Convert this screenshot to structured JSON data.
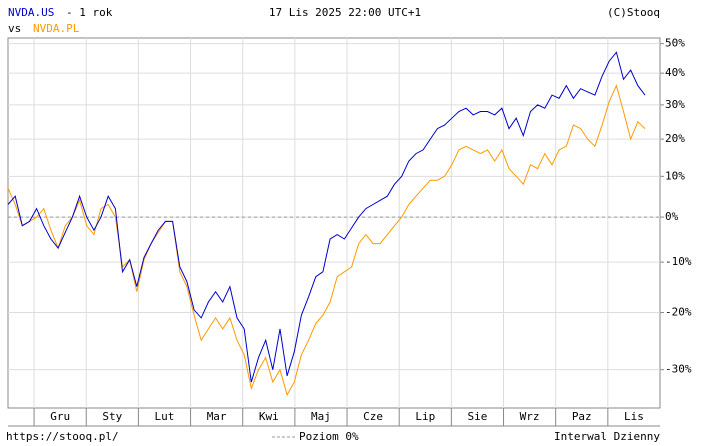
{
  "header": {
    "symbol": "NVDA.US",
    "period": "- 1 rok",
    "date": "17 Lis 2025 22:00 UTC+1",
    "copyright": "(C)Stooq",
    "vs": "vs"
  },
  "chart_data": {
    "type": "line",
    "log_scale": true,
    "grid": true,
    "x_labels": [
      "Gru",
      "Sty",
      "Lut",
      "Mar",
      "Kwi",
      "Maj",
      "Cze",
      "Lip",
      "Sie",
      "Wrz",
      "Paz",
      "Lis"
    ],
    "series": [
      {
        "name": "NVDA.US",
        "color": "#0000cc",
        "values": [
          3,
          5,
          -2,
          -1,
          2,
          -2,
          -5,
          -7,
          -3.5,
          0,
          5,
          0,
          -3,
          0,
          5,
          2,
          -12,
          -9.5,
          -15,
          -9,
          -6,
          -3,
          -1,
          -1,
          -11,
          -14,
          -19.5,
          -21,
          -18,
          -16,
          -18,
          -15,
          -21,
          -23,
          -32,
          -28,
          -25,
          -30,
          -23,
          -31,
          -27,
          -20.5,
          -17,
          -13,
          -12,
          -5,
          -4,
          -5,
          -2.5,
          0,
          2,
          3,
          4,
          5,
          8,
          10,
          14,
          16,
          17,
          20,
          23,
          24,
          26,
          28,
          29,
          27,
          28,
          28,
          27,
          29,
          23,
          26,
          21,
          28,
          30,
          29,
          33,
          32,
          36,
          32,
          35,
          34,
          33,
          39,
          44,
          47,
          38,
          41,
          36,
          33
        ]
      },
      {
        "name": "NVDA.PL",
        "color": "#ff9900",
        "values": [
          7,
          3,
          -2,
          -1,
          0,
          2,
          -3,
          -7,
          -2,
          0,
          4,
          -2,
          -4,
          2,
          3,
          0,
          -11,
          -9.5,
          -16,
          -9.5,
          -6,
          -3.5,
          -1,
          -1,
          -12,
          -15,
          -20.5,
          -25,
          -23,
          -21,
          -23,
          -21,
          -25,
          -27.5,
          -33,
          -30,
          -28,
          -32,
          -30,
          -34,
          -32,
          -27.5,
          -25,
          -22,
          -20.5,
          -18,
          -13,
          -12,
          -11,
          -6,
          -4,
          -6,
          -6,
          -4,
          -2,
          0,
          3,
          5,
          7,
          9,
          9,
          10,
          13,
          17,
          18,
          17,
          16,
          17,
          14,
          17,
          12,
          10,
          8,
          13,
          12,
          16,
          13,
          17,
          18,
          24,
          23,
          20,
          18,
          24,
          31,
          36,
          28,
          20,
          25,
          23
        ]
      }
    ],
    "ylim": [
      -36,
      52
    ],
    "yticks": [
      {
        "value": 50,
        "label": "50%"
      },
      {
        "value": 40,
        "label": "40%"
      },
      {
        "value": 30,
        "label": "30%"
      },
      {
        "value": 20,
        "label": "20%"
      },
      {
        "value": 10,
        "label": "10%"
      },
      {
        "value": 0,
        "label": "0%"
      },
      {
        "value": -10,
        "label": "-10%"
      },
      {
        "value": -20,
        "label": "-20%"
      },
      {
        "value": -30,
        "label": "-30%"
      }
    ],
    "reference_line": {
      "value": 0,
      "label": "Poziom 0%"
    }
  },
  "footer": {
    "url": "https://stooq.pl/",
    "interval": "Interwal Dzienny"
  }
}
